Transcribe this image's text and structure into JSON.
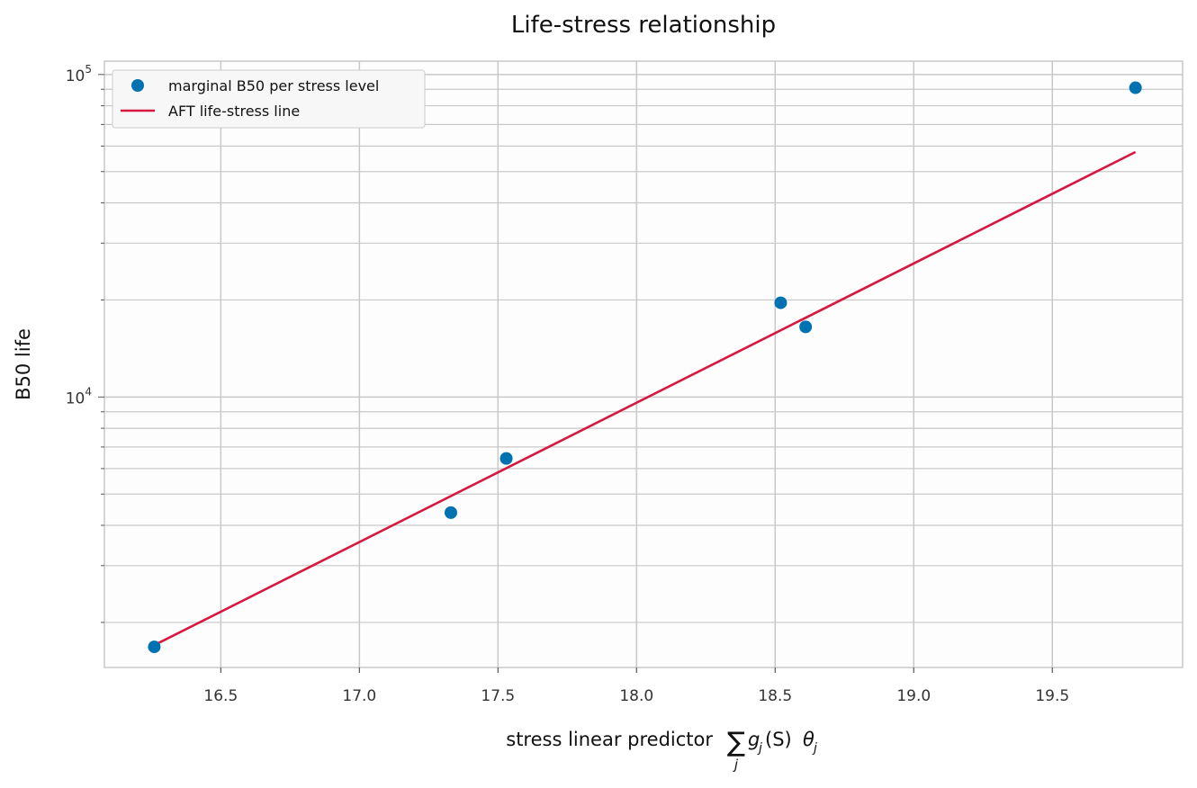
{
  "chart_data": {
    "type": "scatter",
    "title": "Life-stress relationship",
    "xlabel": "stress linear predictor",
    "xlabel_math": {
      "sum": "∑",
      "sub": "j",
      "g": "g",
      "gsub": "j",
      "args": "(S)",
      "theta": "θ",
      "thetasub": "j"
    },
    "ylabel": "B50 life",
    "xlim": [
      16.08,
      19.97
    ],
    "ylim": [
      1450,
      110000
    ],
    "yscale": "log",
    "grid": true,
    "legend_position": "top-left",
    "xticks": [
      "16.5",
      "17.0",
      "17.5",
      "18.0",
      "18.5",
      "19.0",
      "19.5"
    ],
    "yticks": [
      {
        "base": "10",
        "exp": "4",
        "value": 10000
      },
      {
        "base": "10",
        "exp": "5",
        "value": 100000
      }
    ],
    "series": [
      {
        "name": "marginal B50 per stress level",
        "kind": "points",
        "color": "#0072B2",
        "points": [
          {
            "x": 16.26,
            "y": 1680
          },
          {
            "x": 17.33,
            "y": 4380
          },
          {
            "x": 17.53,
            "y": 6450
          },
          {
            "x": 18.52,
            "y": 19600
          },
          {
            "x": 18.61,
            "y": 16500
          },
          {
            "x": 19.8,
            "y": 91000
          }
        ]
      },
      {
        "name": "AFT life-stress line",
        "kind": "line",
        "color": "#D7173F",
        "points": [
          {
            "x": 16.26,
            "y": 1700
          },
          {
            "x": 19.8,
            "y": 57500
          }
        ]
      }
    ]
  }
}
